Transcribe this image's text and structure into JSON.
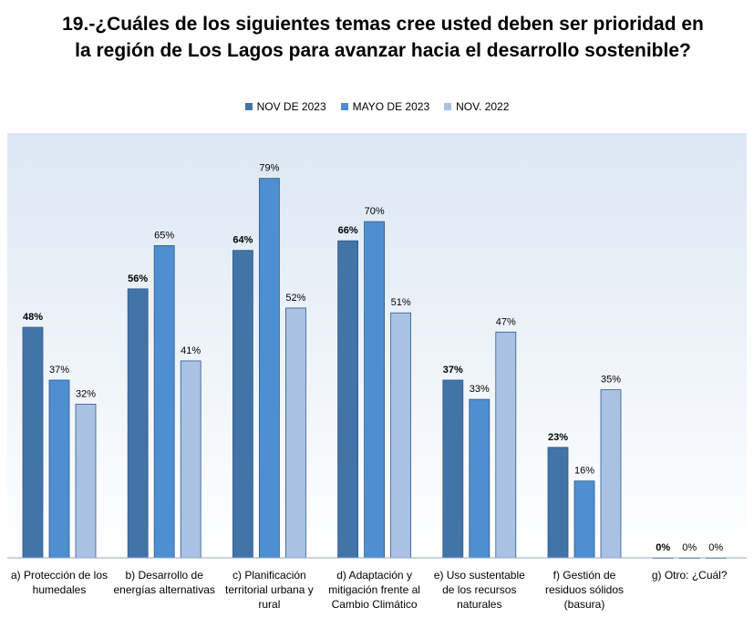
{
  "title": "19.-¿Cuáles de los siguientes temas cree usted deben ser prioridad en la región de Los Lagos para avanzar hacia el desarrollo sostenible?",
  "legend": [
    {
      "label": "NOV DE 2023",
      "color": "#4374a8"
    },
    {
      "label": "MAYO DE 2023",
      "color": "#4e8fd1"
    },
    {
      "label": "NOV. 2022",
      "color": "#a9c2e4"
    }
  ],
  "chart_data": {
    "type": "bar",
    "title": "19.-¿Cuáles de los siguientes temas cree usted deben ser prioridad en la región de Los Lagos para avanzar hacia el desarrollo sostenible?",
    "categories": [
      "a)   Protección de los humedales",
      "b)   Desarrollo de energías alternativas",
      "c)   Planificación territorial urbana y rural",
      "d)   Adaptación y mitigación frente al Cambio Climático",
      "e)   Uso sustentable de los recursos naturales",
      "f)   Gestión de residuos sólidos (basura)",
      "g)   Otro: ¿Cuál?"
    ],
    "series": [
      {
        "name": "NOV DE 2023",
        "values": [
          48,
          56,
          64,
          66,
          37,
          23,
          0
        ],
        "color": "#4374a8",
        "bold_labels": true
      },
      {
        "name": "MAYO DE 2023",
        "values": [
          37,
          65,
          79,
          70,
          33,
          16,
          0
        ],
        "color": "#4e8fd1",
        "bold_labels": false
      },
      {
        "name": "NOV. 2022",
        "values": [
          32,
          41,
          52,
          51,
          47,
          35,
          0
        ],
        "color": "#a9c2e4",
        "bold_labels": false
      }
    ],
    "value_labels": [
      [
        "48%",
        "56%",
        "64%",
        "66%",
        "37%",
        "23%",
        "0%"
      ],
      [
        "37%",
        "65%",
        "79%",
        "70%",
        "33%",
        "16%",
        "0%"
      ],
      [
        "32%",
        "41%",
        "52%",
        "51%",
        "47%",
        "35%",
        "0%"
      ]
    ],
    "ylim": [
      0,
      100
    ],
    "xlabel": "",
    "ylabel": "",
    "grid": false,
    "legend_position": "top"
  }
}
